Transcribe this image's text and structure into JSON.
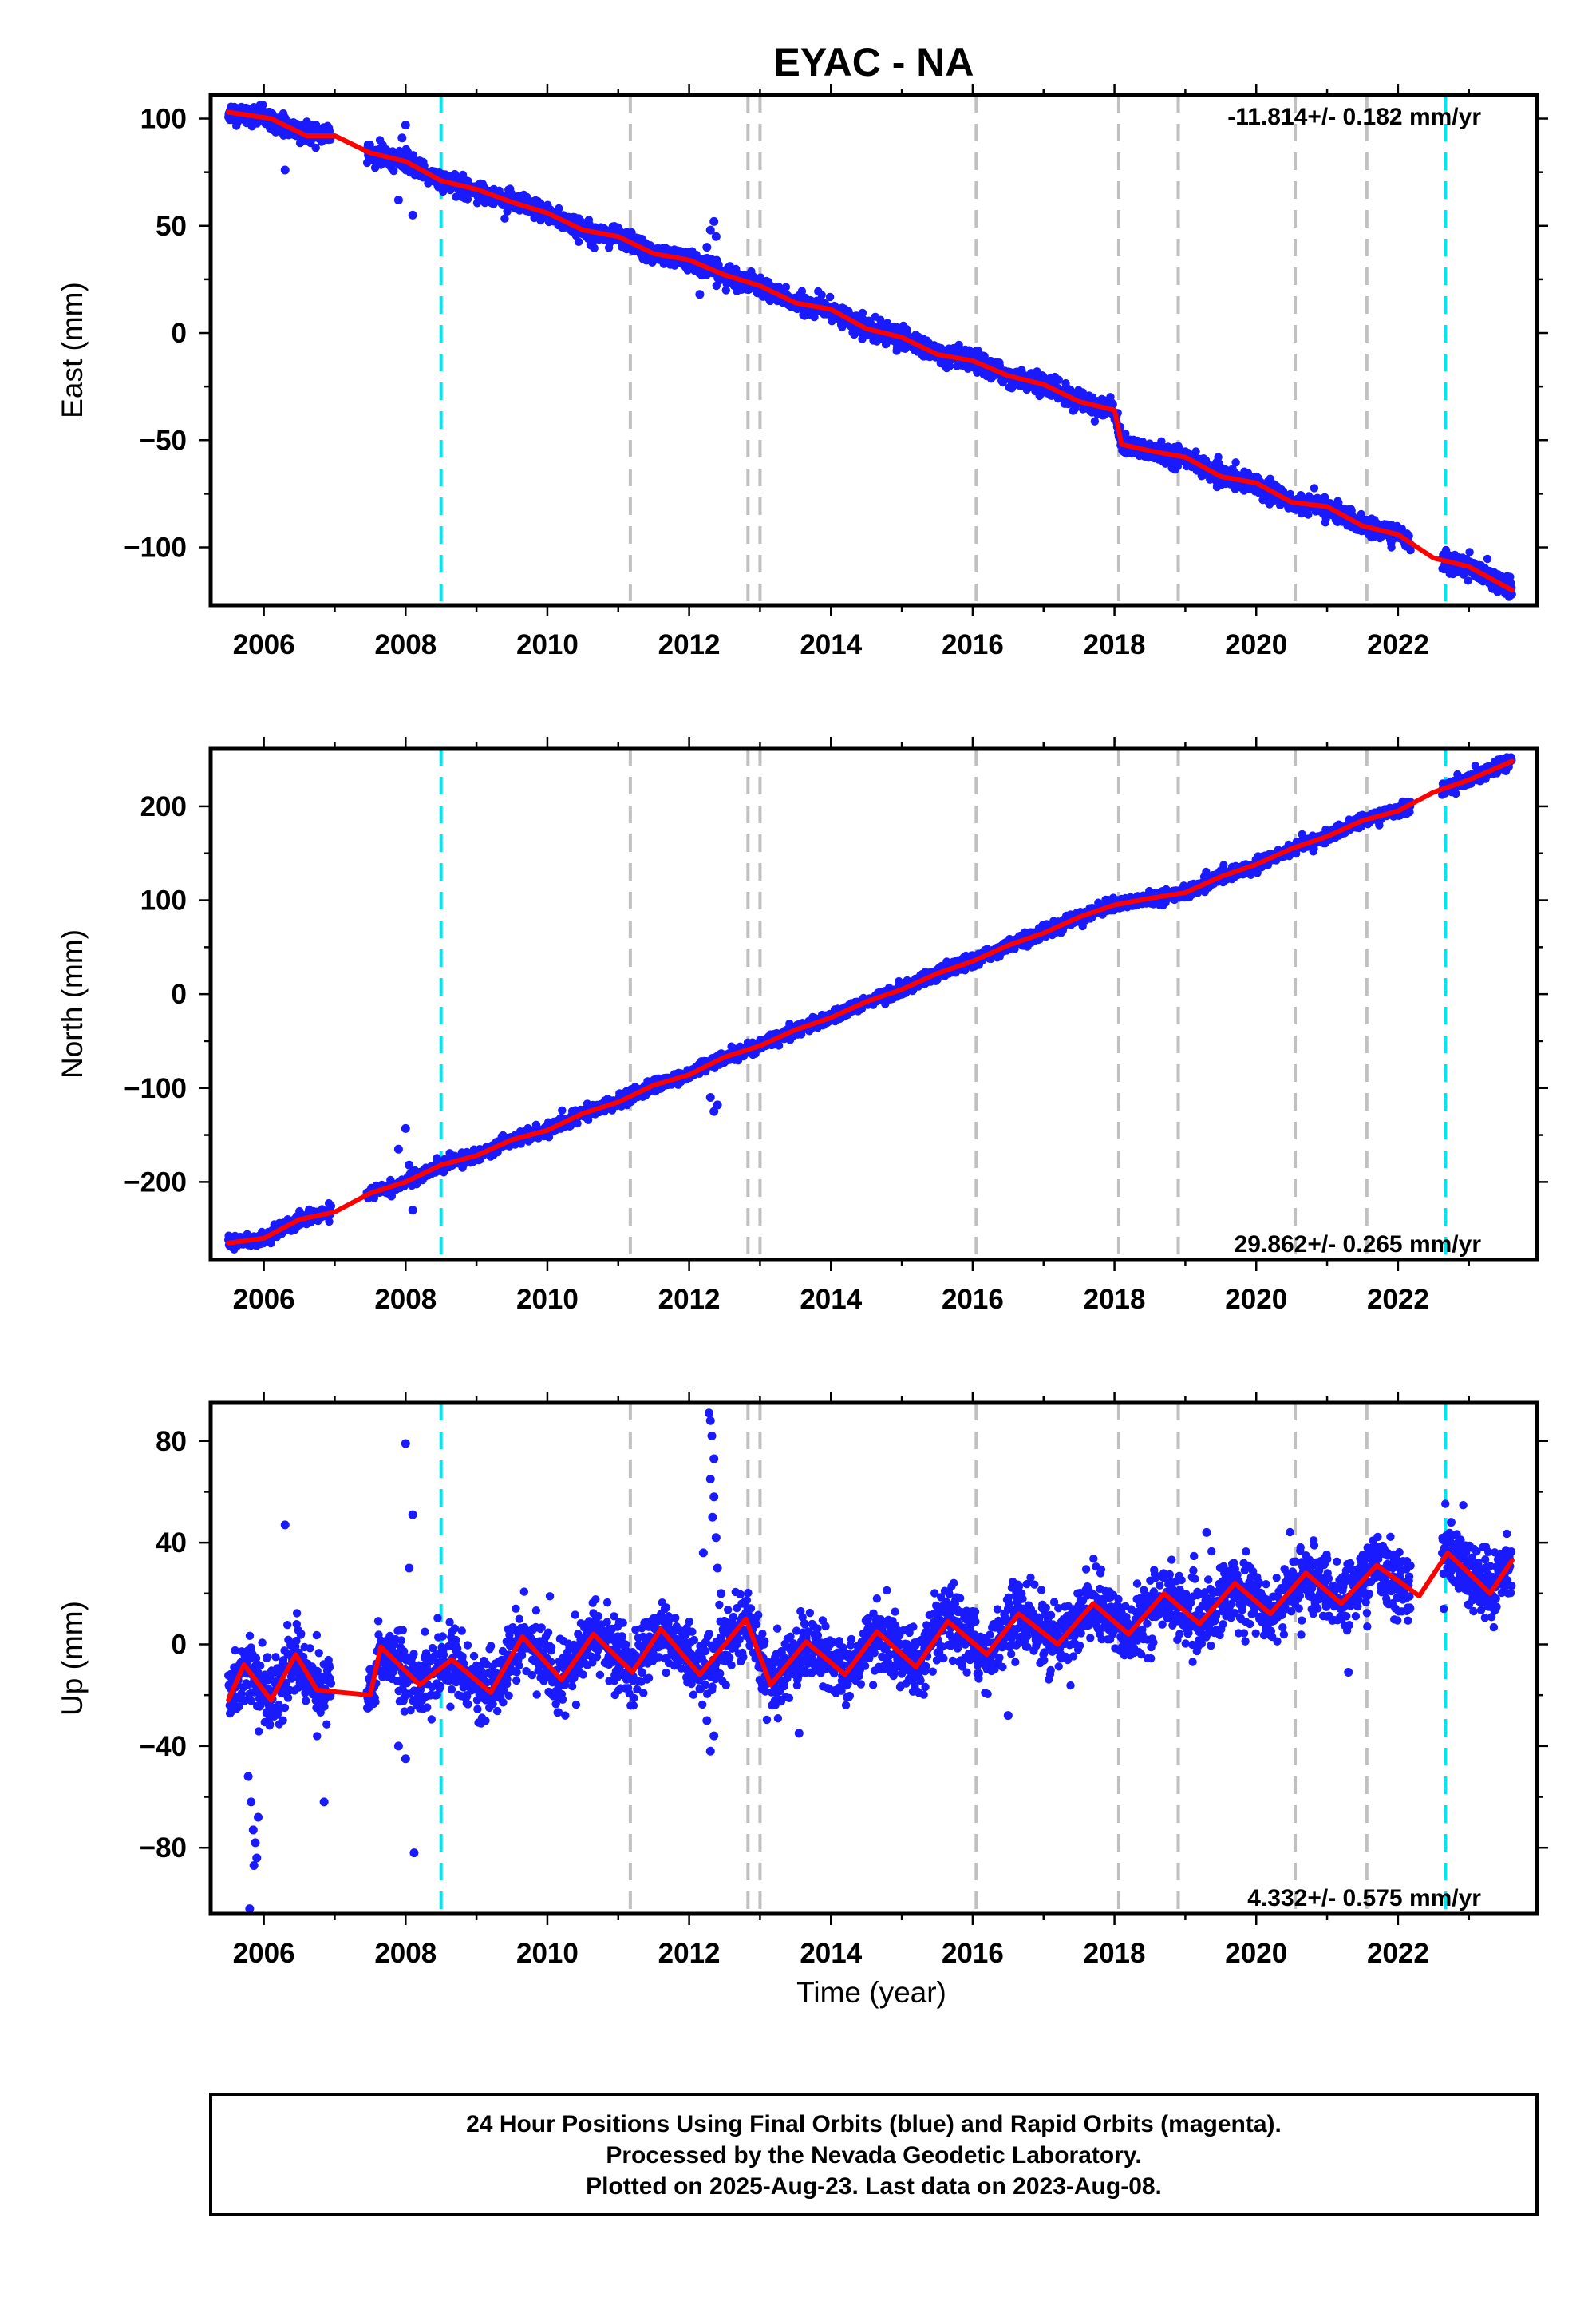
{
  "title": "EYAC - NA",
  "footer": {
    "lines": [
      "24 Hour Positions Using Final Orbits (blue) and Rapid Orbits (magenta).",
      "Processed by the Nevada Geodetic Laboratory.",
      "Plotted on 2025-Aug-23. Last data on 2023-Aug-08."
    ]
  },
  "colors": {
    "data_points": "#1a1aff",
    "model_line": "#ff0000",
    "equipment_change_line": "#c0c0c0",
    "earthquake_line": "#00e5ee",
    "frame": "#000000"
  },
  "shared": {
    "xlabel": "Time (year)",
    "xticks": [
      2006,
      2008,
      2010,
      2012,
      2014,
      2016,
      2018,
      2020,
      2022
    ],
    "xlim": [
      2005.25,
      2023.96
    ],
    "gray_events": [
      2011.17,
      2012.83,
      2013.0,
      2016.05,
      2018.06,
      2018.9,
      2020.55,
      2021.56
    ],
    "cyan_events": [
      2008.5,
      2022.67
    ]
  },
  "chart_data": [
    {
      "type": "scatter",
      "component": "East",
      "ylabel": "East (mm)",
      "rate_text": "-11.814+/- 0.182 mm/yr",
      "rate_position": "top-right",
      "ylim": [
        -127,
        111
      ],
      "yticks": [
        100,
        50,
        0,
        -50,
        -100
      ],
      "ytick_labels": [
        "100",
        "50",
        "0",
        "−50",
        "−100"
      ],
      "trend": {
        "t0": 2005.5,
        "y0": 103.5,
        "rate": -11.814
      },
      "offsets": [
        {
          "at": 2018.06,
          "value": -5
        }
      ],
      "seasonal_amplitude": 1.5,
      "model_knots": [
        [
          2005.5,
          103
        ],
        [
          2006.1,
          100
        ],
        [
          2006.6,
          92
        ],
        [
          2007.0,
          92
        ],
        [
          2007.5,
          84
        ],
        [
          2008.0,
          80
        ],
        [
          2008.5,
          71
        ],
        [
          2009.0,
          67
        ],
        [
          2009.5,
          61
        ],
        [
          2010.0,
          56
        ],
        [
          2010.5,
          48
        ],
        [
          2011.0,
          45
        ],
        [
          2011.5,
          37
        ],
        [
          2012.0,
          34
        ],
        [
          2012.5,
          27
        ],
        [
          2013.0,
          22
        ],
        [
          2013.5,
          14
        ],
        [
          2014.0,
          11
        ],
        [
          2014.5,
          2
        ],
        [
          2015.0,
          -2
        ],
        [
          2015.5,
          -10
        ],
        [
          2016.0,
          -13
        ],
        [
          2016.5,
          -20
        ],
        [
          2017.0,
          -24
        ],
        [
          2017.5,
          -32
        ],
        [
          2018.0,
          -36
        ],
        [
          2018.1,
          -52
        ],
        [
          2018.5,
          -55
        ],
        [
          2019.0,
          -58
        ],
        [
          2019.5,
          -67
        ],
        [
          2020.0,
          -70
        ],
        [
          2020.5,
          -79
        ],
        [
          2021.0,
          -81
        ],
        [
          2021.5,
          -90
        ],
        [
          2022.0,
          -94
        ],
        [
          2022.5,
          -105
        ],
        [
          2023.0,
          -109
        ],
        [
          2023.61,
          -120
        ]
      ],
      "outliers": [
        [
          2006.3,
          76
        ],
        [
          2007.9,
          62
        ],
        [
          2008.1,
          55
        ],
        [
          2008.0,
          97
        ],
        [
          2007.95,
          91
        ],
        [
          2012.15,
          18
        ],
        [
          2012.3,
          48
        ],
        [
          2012.35,
          52
        ],
        [
          2012.38,
          45
        ],
        [
          2012.25,
          40
        ]
      ]
    },
    {
      "type": "scatter",
      "component": "North",
      "ylabel": "North (mm)",
      "rate_text": "29.862+/- 0.265 mm/yr",
      "rate_position": "bottom-right",
      "ylim": [
        -283,
        262
      ],
      "yticks": [
        200,
        100,
        0,
        -100,
        -200
      ],
      "ytick_labels": [
        "200",
        "100",
        "0",
        "−100",
        "−200"
      ],
      "trend": {
        "t0": 2005.5,
        "y0": -266,
        "rate": 29.862
      },
      "offsets": [],
      "seasonal_amplitude": 2,
      "model_knots": [
        [
          2005.5,
          -265
        ],
        [
          2006.0,
          -260
        ],
        [
          2006.5,
          -240
        ],
        [
          2007.0,
          -232
        ],
        [
          2007.5,
          -212
        ],
        [
          2008.0,
          -200
        ],
        [
          2008.5,
          -182
        ],
        [
          2009.0,
          -172
        ],
        [
          2009.5,
          -155
        ],
        [
          2010.0,
          -145
        ],
        [
          2010.5,
          -127
        ],
        [
          2011.0,
          -115
        ],
        [
          2011.5,
          -97
        ],
        [
          2012.0,
          -86
        ],
        [
          2012.5,
          -67
        ],
        [
          2013.0,
          -55
        ],
        [
          2013.5,
          -38
        ],
        [
          2014.0,
          -25
        ],
        [
          2014.5,
          -8
        ],
        [
          2015.0,
          5
        ],
        [
          2015.5,
          22
        ],
        [
          2016.0,
          35
        ],
        [
          2016.5,
          52
        ],
        [
          2017.0,
          65
        ],
        [
          2017.5,
          82
        ],
        [
          2018.0,
          95
        ],
        [
          2018.5,
          102
        ],
        [
          2019.0,
          108
        ],
        [
          2019.5,
          125
        ],
        [
          2020.0,
          138
        ],
        [
          2020.5,
          155
        ],
        [
          2021.0,
          168
        ],
        [
          2021.5,
          185
        ],
        [
          2022.0,
          195
        ],
        [
          2022.5,
          215
        ],
        [
          2023.0,
          228
        ],
        [
          2023.61,
          248
        ]
      ],
      "outliers": [
        [
          2008.0,
          -143
        ],
        [
          2007.9,
          -165
        ],
        [
          2008.05,
          -182
        ],
        [
          2008.1,
          -230
        ],
        [
          2007.8,
          -215
        ],
        [
          2012.35,
          -125
        ],
        [
          2012.3,
          -110
        ],
        [
          2012.4,
          -118
        ]
      ]
    },
    {
      "type": "scatter",
      "component": "Up",
      "ylabel": "Up (mm)",
      "rate_text": "4.332+/- 0.575 mm/yr",
      "rate_position": "bottom-right",
      "ylim": [
        -106,
        95
      ],
      "yticks": [
        80,
        40,
        0,
        -40,
        -80
      ],
      "ytick_labels": [
        "80",
        "40",
        "0",
        "−40",
        "−80"
      ],
      "trend": {
        "t0": 2005.5,
        "y0": -16,
        "rate": 4.332
      },
      "offsets": [],
      "seasonal_amplitude": 11,
      "model_knots": [
        [
          2005.5,
          -22
        ],
        [
          2005.72,
          -8
        ],
        [
          2006.1,
          -22
        ],
        [
          2006.45,
          -4
        ],
        [
          2006.75,
          -18
        ],
        [
          2007.5,
          -20
        ],
        [
          2007.65,
          -1
        ],
        [
          2008.2,
          -16
        ],
        [
          2008.65,
          -6
        ],
        [
          2009.2,
          -19
        ],
        [
          2009.65,
          3
        ],
        [
          2010.2,
          -14
        ],
        [
          2010.65,
          4
        ],
        [
          2011.2,
          -11
        ],
        [
          2011.6,
          6
        ],
        [
          2012.15,
          -12
        ],
        [
          2012.8,
          10
        ],
        [
          2013.15,
          -16
        ],
        [
          2013.65,
          1
        ],
        [
          2014.2,
          -12
        ],
        [
          2014.65,
          5
        ],
        [
          2015.2,
          -9
        ],
        [
          2015.65,
          9
        ],
        [
          2016.2,
          -4
        ],
        [
          2016.65,
          12
        ],
        [
          2017.2,
          0
        ],
        [
          2017.7,
          16
        ],
        [
          2018.2,
          4
        ],
        [
          2018.7,
          20
        ],
        [
          2019.2,
          8
        ],
        [
          2019.7,
          24
        ],
        [
          2020.2,
          12
        ],
        [
          2020.7,
          28
        ],
        [
          2021.2,
          16
        ],
        [
          2021.7,
          31
        ],
        [
          2022.3,
          19
        ],
        [
          2022.7,
          36
        ],
        [
          2023.3,
          20
        ],
        [
          2023.61,
          33
        ]
      ],
      "outliers": [
        [
          2005.78,
          -52
        ],
        [
          2005.82,
          -62
        ],
        [
          2005.85,
          -73
        ],
        [
          2005.88,
          -78
        ],
        [
          2005.9,
          -84
        ],
        [
          2005.8,
          -104
        ],
        [
          2005.86,
          -87
        ],
        [
          2005.92,
          -68
        ],
        [
          2006.3,
          47
        ],
        [
          2006.85,
          -62
        ],
        [
          2008.0,
          79
        ],
        [
          2008.1,
          51
        ],
        [
          2008.05,
          30
        ],
        [
          2008.12,
          -82
        ],
        [
          2007.9,
          -40
        ],
        [
          2008.0,
          -45
        ],
        [
          2012.28,
          91
        ],
        [
          2012.3,
          88
        ],
        [
          2012.32,
          82
        ],
        [
          2012.35,
          73
        ],
        [
          2012.3,
          65
        ],
        [
          2012.35,
          58
        ],
        [
          2012.33,
          50
        ],
        [
          2012.38,
          42
        ],
        [
          2012.2,
          36
        ],
        [
          2012.4,
          30
        ],
        [
          2012.3,
          -42
        ],
        [
          2012.35,
          -36
        ],
        [
          2012.25,
          -30
        ],
        [
          2012.45,
          20
        ],
        [
          2013.55,
          -35
        ],
        [
          2016.5,
          -28
        ],
        [
          2019.3,
          44
        ],
        [
          2021.3,
          -11
        ],
        [
          2022.75,
          48
        ]
      ]
    }
  ]
}
